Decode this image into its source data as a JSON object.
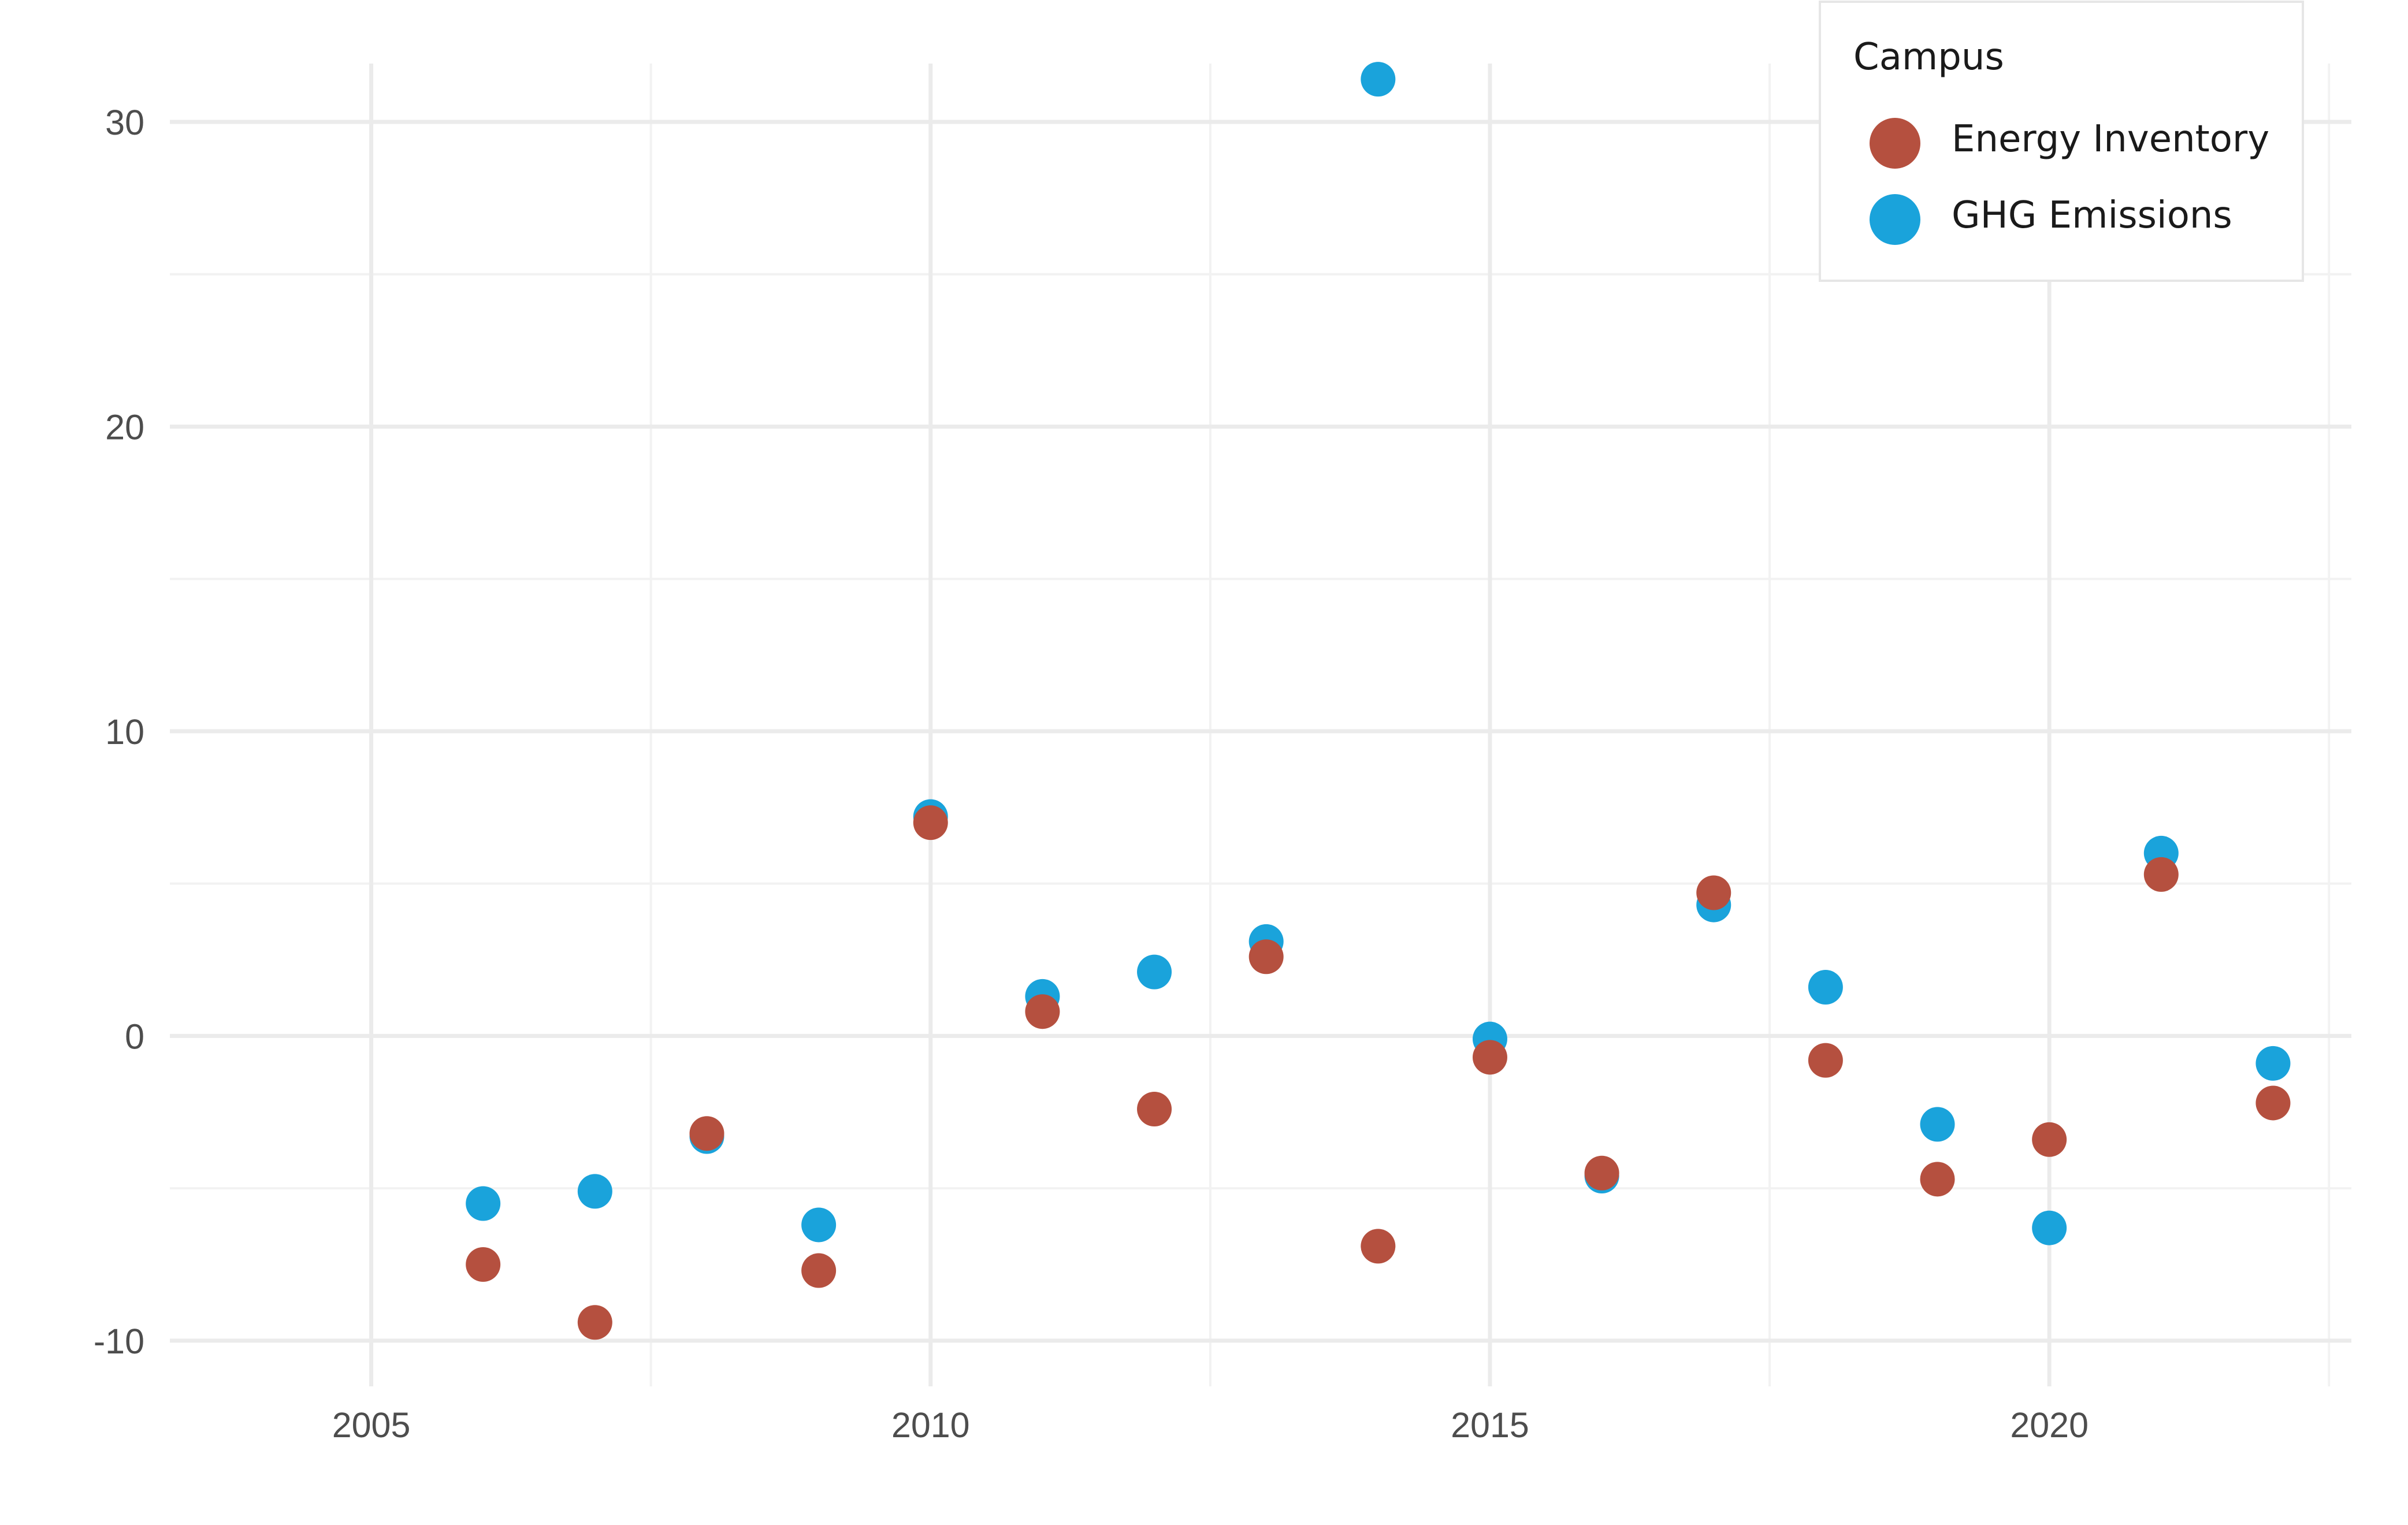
{
  "chart_data": {
    "type": "scatter",
    "title": "",
    "xlabel": "",
    "ylabel": "",
    "xlim": [
      2003.2,
      2022.7
    ],
    "ylim": [
      -11.5,
      34.0
    ],
    "x_ticks": [
      2005,
      2010,
      2015,
      2020
    ],
    "y_ticks": [
      -10,
      0,
      10,
      20,
      30
    ],
    "x_tick_labels": [
      "2005",
      "2010",
      "2015",
      "2020"
    ],
    "y_tick_labels": [
      "-10",
      "0",
      "10",
      "20",
      "30"
    ],
    "grid": true,
    "legend": {
      "title": "Campus",
      "position": "top-right"
    },
    "series": [
      {
        "name": "Energy Inventory",
        "color": "#b5503f",
        "points": [
          {
            "x": 2006,
            "y": -7.5
          },
          {
            "x": 2007,
            "y": -9.4
          },
          {
            "x": 2008,
            "y": -3.2
          },
          {
            "x": 2009,
            "y": -7.7
          },
          {
            "x": 2010,
            "y": 7.0
          },
          {
            "x": 2011,
            "y": 0.8
          },
          {
            "x": 2012,
            "y": -2.4
          },
          {
            "x": 2013,
            "y": 2.6
          },
          {
            "x": 2014,
            "y": -6.9
          },
          {
            "x": 2015,
            "y": -0.7
          },
          {
            "x": 2016,
            "y": -4.5
          },
          {
            "x": 2017,
            "y": 4.7
          },
          {
            "x": 2018,
            "y": -0.8
          },
          {
            "x": 2019,
            "y": -4.7
          },
          {
            "x": 2020,
            "y": -3.4
          },
          {
            "x": 2021,
            "y": 5.3
          },
          {
            "x": 2022,
            "y": -2.2
          }
        ]
      },
      {
        "name": "GHG Emissions",
        "color": "#1aa3db",
        "points": [
          {
            "x": 2006,
            "y": -5.5
          },
          {
            "x": 2007,
            "y": -5.1
          },
          {
            "x": 2008,
            "y": -3.3
          },
          {
            "x": 2009,
            "y": -6.2
          },
          {
            "x": 2010,
            "y": 7.2
          },
          {
            "x": 2011,
            "y": 1.3
          },
          {
            "x": 2012,
            "y": 2.1
          },
          {
            "x": 2013,
            "y": 3.1
          },
          {
            "x": 2014,
            "y": 31.4
          },
          {
            "x": 2015,
            "y": -0.1
          },
          {
            "x": 2016,
            "y": -4.6
          },
          {
            "x": 2017,
            "y": 4.3
          },
          {
            "x": 2018,
            "y": 1.6
          },
          {
            "x": 2019,
            "y": -2.9
          },
          {
            "x": 2020,
            "y": -6.3
          },
          {
            "x": 2021,
            "y": 6.0
          },
          {
            "x": 2022,
            "y": -0.9
          }
        ]
      }
    ]
  }
}
